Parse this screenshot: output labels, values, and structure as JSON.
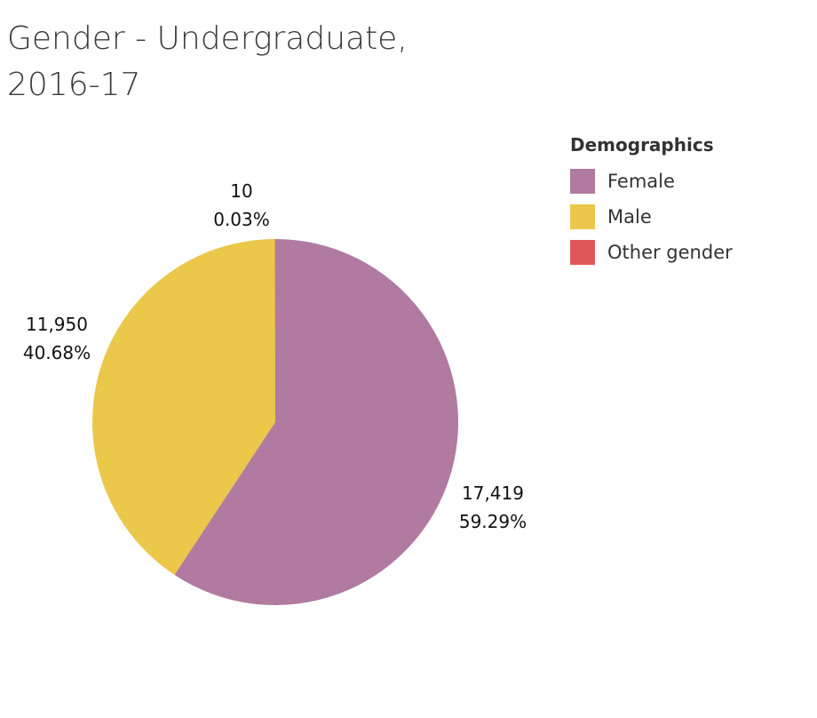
{
  "title_lines": [
    "Gender - Undergraduate,",
    "2016-17"
  ],
  "legend": {
    "title": "Demographics",
    "items": [
      {
        "label": "Female",
        "color": "#b07aa1"
      },
      {
        "label": "Male",
        "color": "#ebc74a"
      },
      {
        "label": "Other gender",
        "color": "#e15759"
      }
    ]
  },
  "chart_data": {
    "type": "pie",
    "title": "Gender - Undergraduate, 2016-17",
    "legend_title": "Demographics",
    "legend_position": "top-right",
    "slices": [
      {
        "name": "Female",
        "value": 17419,
        "percent": 59.29,
        "value_label": "17,419",
        "percent_label": "59.29%",
        "color": "#b07aa1"
      },
      {
        "name": "Male",
        "value": 11950,
        "percent": 40.68,
        "value_label": "11,950",
        "percent_label": "40.68%",
        "color": "#ebc74a"
      },
      {
        "name": "Other gender",
        "value": 10,
        "percent": 0.03,
        "value_label": "10",
        "percent_label": "0.03%",
        "color": "#e15759"
      }
    ]
  }
}
